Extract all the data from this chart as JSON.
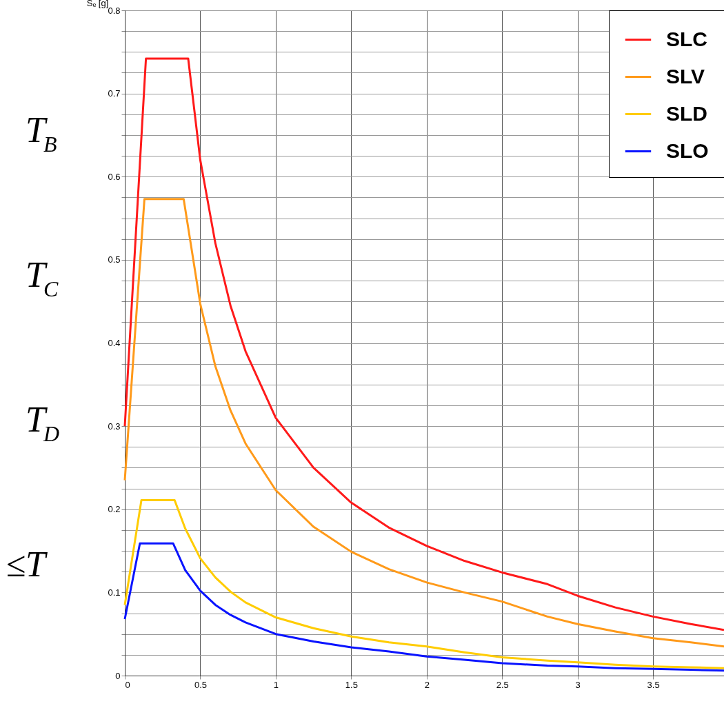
{
  "chart_data": {
    "type": "line",
    "ylabel": "Sₑ [g]",
    "x": [
      0,
      0.14,
      0.42,
      0.5,
      0.6,
      0.7,
      0.8,
      1,
      1.25,
      1.5,
      1.75,
      2,
      2.25,
      2.5,
      2.8,
      3,
      3.25,
      3.5,
      3.75,
      3.97
    ],
    "series": [
      {
        "name": "SLC",
        "color": "#ff1a1a",
        "values": [
          0.3,
          0.742,
          0.742,
          0.62,
          0.52,
          0.445,
          0.39,
          0.31,
          0.25,
          0.208,
          0.178,
          0.156,
          0.138,
          0.124,
          0.11,
          0.096,
          0.082,
          0.071,
          0.062,
          0.055
        ]
      },
      {
        "name": "SLV",
        "color": "#ff9a1a",
        "x": [
          0,
          0.13,
          0.39,
          0.5,
          0.6,
          0.7,
          0.8,
          1,
          1.25,
          1.5,
          1.75,
          2,
          2.25,
          2.5,
          2.8,
          3,
          3.25,
          3.5,
          3.75,
          3.97
        ],
        "values": [
          0.235,
          0.573,
          0.573,
          0.447,
          0.372,
          0.319,
          0.279,
          0.223,
          0.179,
          0.149,
          0.128,
          0.112,
          0.1,
          0.089,
          0.071,
          0.062,
          0.053,
          0.045,
          0.04,
          0.035
        ]
      },
      {
        "name": "SLD",
        "color": "#ffcc00",
        "x": [
          0,
          0.11,
          0.33,
          0.4,
          0.5,
          0.6,
          0.7,
          0.8,
          1,
          1.25,
          1.5,
          1.75,
          2,
          2.25,
          2.5,
          2.8,
          3,
          3.25,
          3.5,
          3.75,
          3.97
        ],
        "values": [
          0.085,
          0.211,
          0.211,
          0.177,
          0.141,
          0.118,
          0.101,
          0.088,
          0.07,
          0.057,
          0.047,
          0.04,
          0.035,
          0.028,
          0.022,
          0.018,
          0.016,
          0.013,
          0.011,
          0.01,
          0.009
        ]
      },
      {
        "name": "SLO",
        "color": "#0a14ff",
        "x": [
          0,
          0.1,
          0.32,
          0.4,
          0.5,
          0.6,
          0.7,
          0.8,
          1,
          1.25,
          1.5,
          1.75,
          2,
          2.25,
          2.5,
          2.8,
          3,
          3.25,
          3.5,
          3.75,
          3.97
        ],
        "values": [
          0.068,
          0.159,
          0.159,
          0.127,
          0.102,
          0.085,
          0.073,
          0.064,
          0.05,
          0.041,
          0.034,
          0.029,
          0.023,
          0.019,
          0.015,
          0.012,
          0.011,
          0.009,
          0.008,
          0.007,
          0.006
        ]
      }
    ],
    "xlim": [
      0,
      3.97
    ],
    "xticks": [
      0,
      0.5,
      1,
      1.5,
      2,
      2.5,
      3,
      3.5
    ],
    "ylim": [
      0,
      0.8
    ],
    "yticks": [
      0,
      {
        "value": 0.025,
        "label": null
      },
      {
        "value": 0.05,
        "label": null
      },
      {
        "value": 0.075,
        "label": null
      },
      0.1,
      {
        "value": 0.125,
        "label": null
      },
      {
        "value": 0.15,
        "label": null
      },
      {
        "value": 0.175,
        "label": null
      },
      0.2,
      {
        "value": 0.225,
        "label": null
      },
      {
        "value": 0.25,
        "label": null
      },
      {
        "value": 0.275,
        "label": null
      },
      0.3,
      {
        "value": 0.325,
        "label": null
      },
      {
        "value": 0.35,
        "label": null
      },
      {
        "value": 0.375,
        "label": null
      },
      0.4,
      {
        "value": 0.425,
        "label": null
      },
      {
        "value": 0.45,
        "label": null
      },
      {
        "value": 0.475,
        "label": null
      },
      0.5,
      {
        "value": 0.525,
        "label": null
      },
      {
        "value": 0.55,
        "label": null
      },
      {
        "value": 0.575,
        "label": null
      },
      0.6,
      {
        "value": 0.625,
        "label": null
      },
      {
        "value": 0.65,
        "label": null
      },
      {
        "value": 0.675,
        "label": null
      },
      0.7,
      {
        "value": 0.725,
        "label": null
      },
      {
        "value": 0.75,
        "label": null
      },
      {
        "value": 0.775,
        "label": null
      },
      0.8
    ],
    "grid": true,
    "legend": "top right",
    "line_style": "solid",
    "marker": "none",
    "annotations": [
      "T$_{B}$",
      "T$_{C}$",
      "T$_{D}$",
      "≤T"
    ]
  }
}
